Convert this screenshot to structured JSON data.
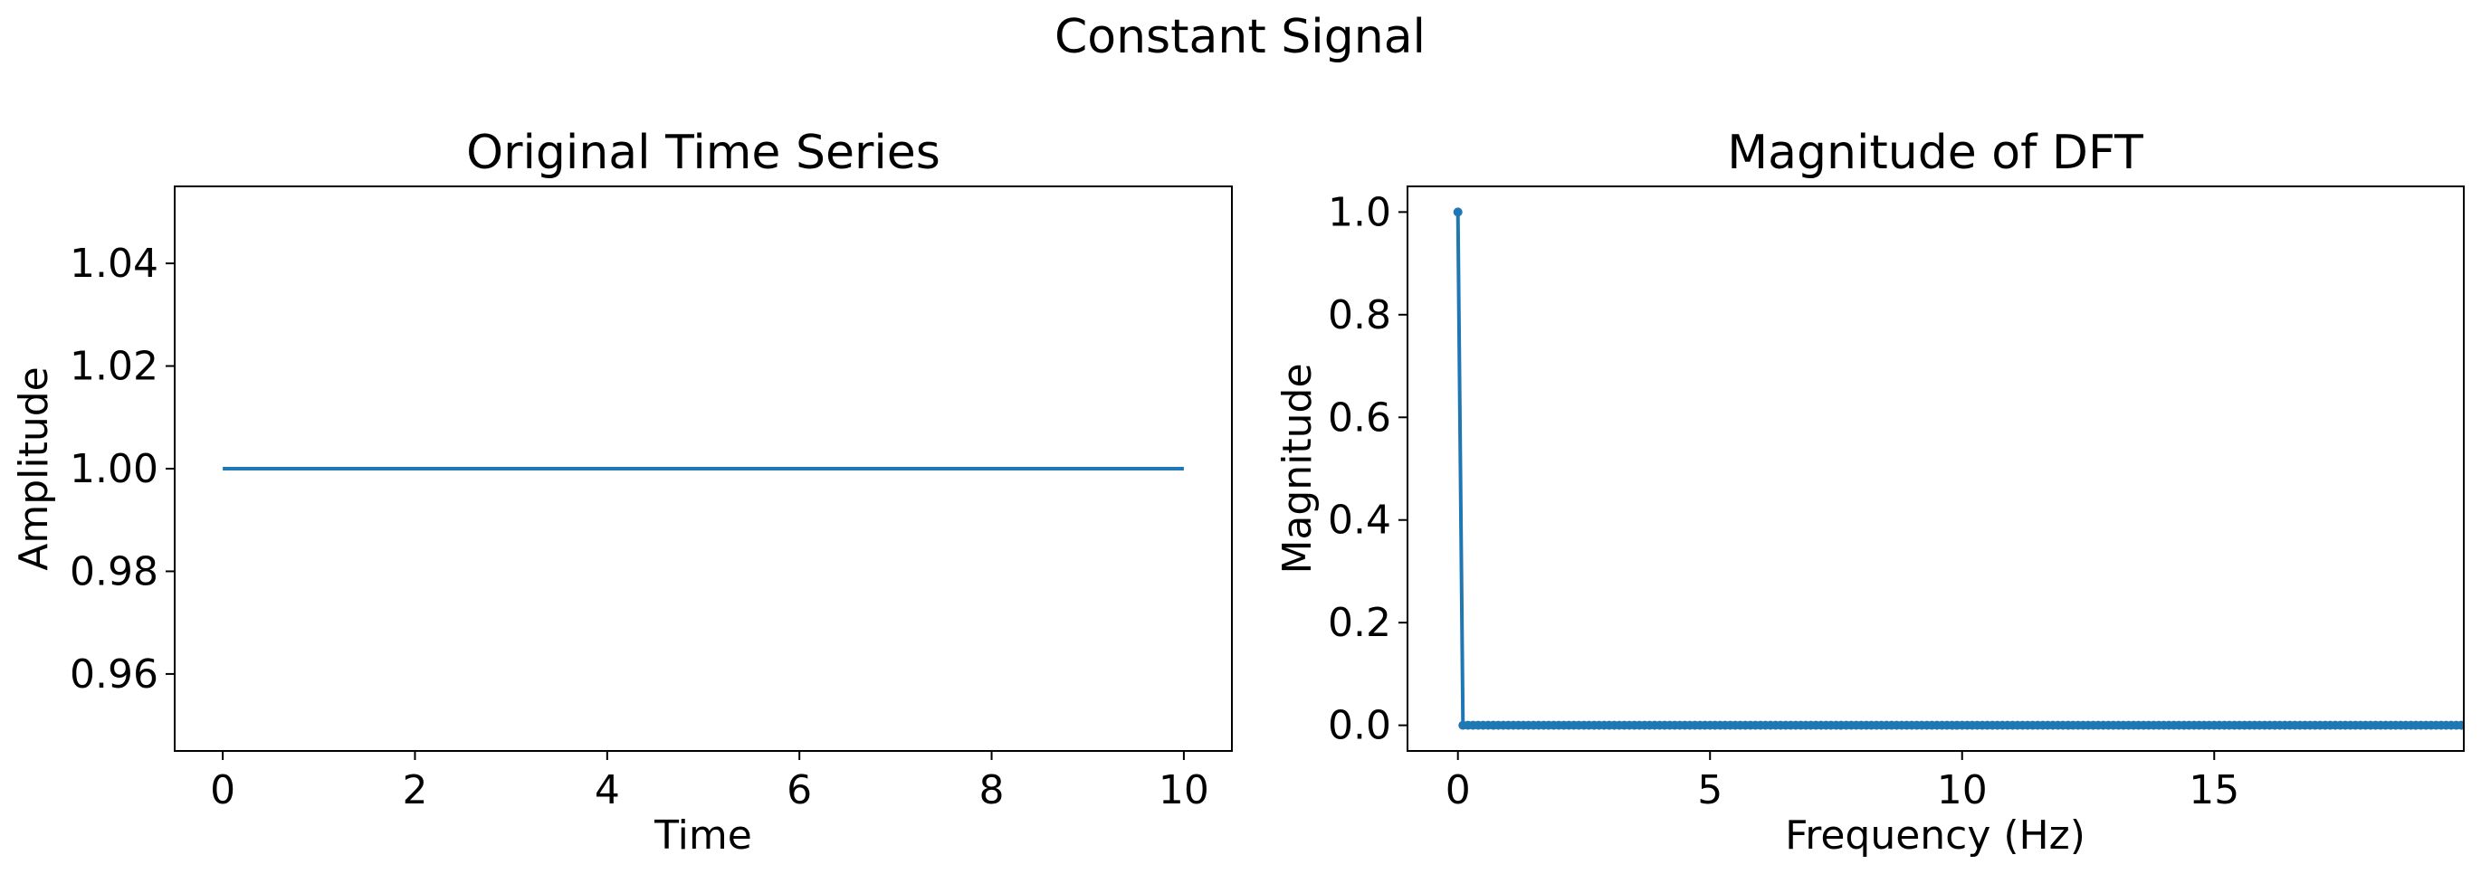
{
  "figure": {
    "suptitle": "Constant Signal",
    "line_color": "#1f77b4"
  },
  "chart_data": [
    {
      "type": "line",
      "title": "Original Time Series",
      "xlabel": "Time",
      "ylabel": "Amplitude",
      "xlim": [
        -0.5,
        10.5
      ],
      "ylim": [
        0.945,
        1.055
      ],
      "xticks": [
        0,
        2,
        4,
        6,
        8,
        10
      ],
      "xtick_labels": [
        "0",
        "2",
        "4",
        "6",
        "8",
        "10"
      ],
      "yticks": [
        0.96,
        0.98,
        1.0,
        1.02,
        1.04
      ],
      "ytick_labels": [
        "0.96",
        "0.98",
        "1.00",
        "1.02",
        "1.04"
      ],
      "grid": false,
      "series": [
        {
          "x": [
            0,
            10
          ],
          "y": [
            1.0,
            1.0
          ]
        }
      ]
    },
    {
      "type": "line",
      "title": "Magnitude of DFT",
      "xlabel": "Frequency (Hz)",
      "ylabel": "Magnitude",
      "xlim": [
        -1.0,
        19.95
      ],
      "ylim": [
        -0.05,
        1.05
      ],
      "xticks": [
        0,
        5,
        10,
        15
      ],
      "xtick_labels": [
        "0",
        "5",
        "10",
        "15"
      ],
      "yticks": [
        0.0,
        0.2,
        0.4,
        0.6,
        0.8,
        1.0
      ],
      "ytick_labels": [
        "0.0",
        "0.2",
        "0.4",
        "0.6",
        "0.8",
        "1.0"
      ],
      "grid": false,
      "markers": true,
      "sample_spacing": 0.1,
      "series": [
        {
          "x_start": 0,
          "x_end": 19.9,
          "step": 0.1,
          "first_value": 1.0,
          "rest_value": 0.0
        }
      ]
    }
  ]
}
